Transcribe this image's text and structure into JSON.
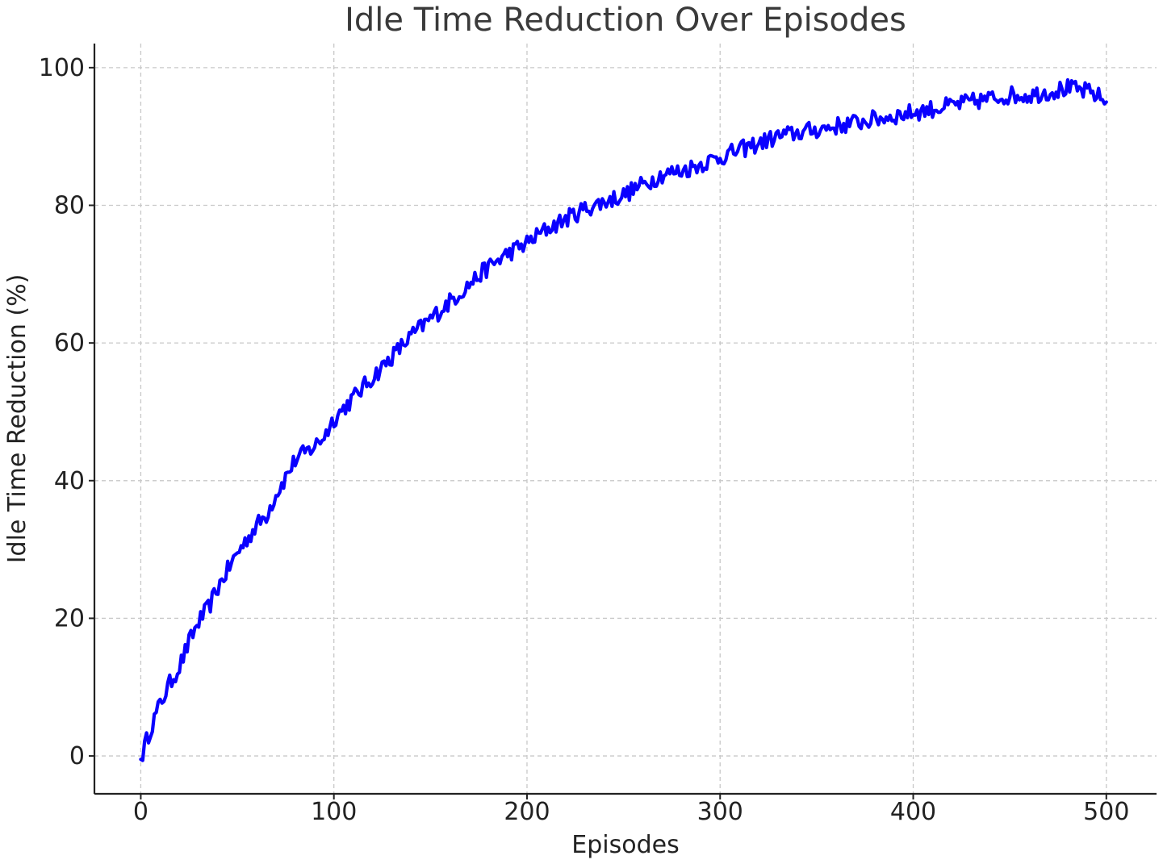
{
  "chart_data": {
    "type": "line",
    "title": "Idle Time Reduction Over Episodes",
    "xlabel": "Episodes",
    "ylabel": "Idle Time Reduction (%)",
    "xlim": [
      -24,
      526
    ],
    "ylim": [
      -5.5,
      103.5
    ],
    "xticks": [
      0,
      100,
      200,
      300,
      400,
      500
    ],
    "yticks": [
      0,
      20,
      40,
      60,
      80,
      100
    ],
    "x_tick_labels": [
      "0",
      "100",
      "200",
      "300",
      "400",
      "500"
    ],
    "y_tick_labels": [
      "0",
      "20",
      "40",
      "60",
      "80",
      "100"
    ],
    "grid": true,
    "series": [
      {
        "color": "#0a00ff",
        "x": [
          0,
          5,
          10,
          15,
          20,
          25,
          30,
          35,
          40,
          45,
          50,
          55,
          60,
          65,
          70,
          75,
          80,
          85,
          90,
          95,
          100,
          110,
          120,
          130,
          140,
          150,
          160,
          170,
          180,
          190,
          200,
          210,
          220,
          230,
          240,
          250,
          260,
          270,
          280,
          290,
          300,
          310,
          320,
          330,
          340,
          350,
          360,
          370,
          380,
          390,
          400,
          410,
          420,
          430,
          440,
          450,
          460,
          470,
          480,
          490,
          495,
          500
        ],
        "y": [
          -0.5,
          4,
          7.5,
          10.5,
          13,
          16.5,
          19.5,
          21.5,
          24.5,
          27,
          29.5,
          31.5,
          33.5,
          35,
          38,
          40.5,
          43,
          44,
          45,
          46.5,
          49,
          52,
          55,
          58,
          61,
          63.5,
          66,
          68.5,
          71,
          73,
          74.5,
          76.5,
          78,
          79.5,
          80.5,
          81.5,
          83,
          84.5,
          85,
          86,
          87,
          88,
          89,
          90,
          90.5,
          91,
          91.5,
          92,
          92.5,
          93,
          93.5,
          94,
          94.5,
          95,
          95.5,
          96,
          96,
          96.5,
          97,
          96.5,
          96,
          95
        ]
      }
    ]
  }
}
